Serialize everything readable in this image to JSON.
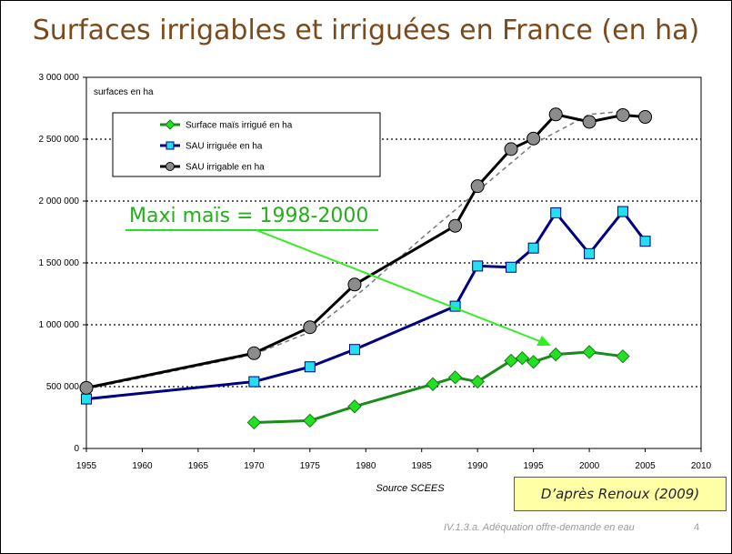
{
  "slide": {
    "title": "Surfaces irrigables et irriguées en France (en ha)",
    "footer": "IV.1.3.a. Adéquation offre-demande en eau",
    "page_number": "4",
    "source_box": "D’après Renoux (2009)"
  },
  "chart_data": {
    "type": "line",
    "ylabel": "surfaces en ha",
    "xlabel": "Source SCEES",
    "xlim": [
      1955,
      2010
    ],
    "ylim": [
      0,
      3000000
    ],
    "x_ticks": [
      "1955",
      "1960",
      "1965",
      "1970",
      "1975",
      "1980",
      "1985",
      "1990",
      "1995",
      "2000",
      "2005",
      "2010"
    ],
    "y_ticks": [
      "0",
      "500 000",
      "1 000 000",
      "1 500 000",
      "2 000 000",
      "2 500 000",
      "3 000 000"
    ],
    "grid": "horizontal dotted",
    "legend_position": "top-left",
    "annotation": "Maxi maïs = 1998-2000",
    "series": [
      {
        "name": "Surface maïs irrigué en ha",
        "color": "#1a8c1a",
        "marker_color": "#22e022",
        "marker": "diamond",
        "x": [
          1970,
          1975,
          1979,
          1986,
          1988,
          1990,
          1993,
          1994,
          1995,
          1997,
          2000,
          2003
        ],
        "y": [
          210000,
          225000,
          340000,
          520000,
          575000,
          540000,
          710000,
          730000,
          700000,
          760000,
          780000,
          745000
        ]
      },
      {
        "name": "SAU irriguée en ha",
        "color": "#000080",
        "marker_color": "#22e0f0",
        "marker": "square",
        "x": [
          1955,
          1970,
          1975,
          1979,
          1988,
          1990,
          1993,
          1995,
          1997,
          2000,
          2003,
          2005
        ],
        "y": [
          400000,
          540000,
          660000,
          800000,
          1150000,
          1475000,
          1465000,
          1620000,
          1905000,
          1575000,
          1915000,
          1675000
        ]
      },
      {
        "name": "SAU irrigable en ha",
        "color": "#000000",
        "marker_color": "#8c8c8c",
        "marker": "circle",
        "x": [
          1955,
          1970,
          1975,
          1979,
          1988,
          1990,
          1993,
          1995,
          1997,
          2000,
          2003,
          2005
        ],
        "y": [
          490000,
          770000,
          980000,
          1325000,
          1800000,
          2120000,
          2420000,
          2505000,
          2700000,
          2640000,
          2695000,
          2680000
        ]
      }
    ],
    "trend": {
      "x": [
        1955,
        1970,
        1975,
        1980,
        1985,
        1990,
        1995,
        2000,
        2003
      ],
      "y": [
        480000,
        760000,
        940000,
        1300000,
        1700000,
        2080000,
        2460000,
        2700000,
        2725000
      ]
    }
  }
}
